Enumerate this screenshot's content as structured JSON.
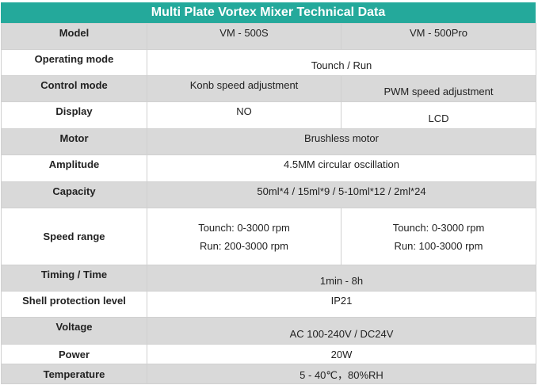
{
  "title": "Multi Plate Vortex Mixer Technical Data",
  "rows": {
    "model": {
      "label": "Model",
      "a": "VM - 500S",
      "b": "VM - 500Pro"
    },
    "operating_mode": {
      "label": "Operating mode",
      "value": "Tounch / Run"
    },
    "control_mode": {
      "label": "Control mode",
      "a": "Konb speed adjustment",
      "b": "PWM speed adjustment"
    },
    "display": {
      "label": "Display",
      "a": "NO",
      "b": "LCD"
    },
    "motor": {
      "label": "Motor",
      "value": "Brushless motor"
    },
    "amplitude": {
      "label": "Amplitude",
      "value": "4.5MM circular oscillation"
    },
    "capacity": {
      "label": "Capacity",
      "value": "50ml*4 / 15ml*9 / 5-10ml*12 / 2ml*24"
    },
    "speed_range": {
      "label": "Speed range",
      "a_line1": "Tounch: 0-3000 rpm",
      "a_line2": "Run: 200-3000 rpm",
      "b_line1": "Tounch: 0-3000 rpm",
      "b_line2": "Run: 100-3000 rpm"
    },
    "timing": {
      "label": "Timing / Time",
      "value": "1min - 8h"
    },
    "shell": {
      "label": "Shell protection level",
      "value": "IP21"
    },
    "voltage": {
      "label": "Voltage",
      "value": "AC 100-240V / DC24V"
    },
    "power": {
      "label": "Power",
      "value": "20W"
    },
    "temperature": {
      "label": "Temperature",
      "value": "5 - 40℃，80%RH"
    }
  }
}
